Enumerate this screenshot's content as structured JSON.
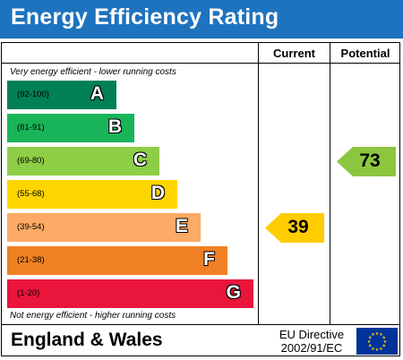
{
  "title": "Energy Efficiency Rating",
  "columns": {
    "current": "Current",
    "potential": "Potential"
  },
  "top_note": "Very energy efficient - lower running costs",
  "bottom_note": "Not energy efficient - higher running costs",
  "bands": [
    {
      "range": "(92-100)",
      "letter": "A",
      "color": "#008054"
    },
    {
      "range": "(81-91)",
      "letter": "B",
      "color": "#19b459"
    },
    {
      "range": "(69-80)",
      "letter": "C",
      "color": "#8dce46"
    },
    {
      "range": "(55-68)",
      "letter": "D",
      "color": "#ffd500"
    },
    {
      "range": "(39-54)",
      "letter": "E",
      "color": "#fcaa65"
    },
    {
      "range": "(21-38)",
      "letter": "F",
      "color": "#ef8023"
    },
    {
      "range": "(1-20)",
      "letter": "G",
      "color": "#e9153b"
    }
  ],
  "current": {
    "value": "39",
    "band": "E",
    "color": "#ffcc00"
  },
  "potential": {
    "value": "73",
    "band": "C",
    "color": "#8cc63f"
  },
  "footer": {
    "region": "England & Wales",
    "directive_line1": "EU Directive",
    "directive_line2": "2002/91/EC"
  },
  "colors": {
    "title_bar": "#1e73be",
    "eu_flag": "#003399",
    "eu_stars": "#ffcc00"
  }
}
